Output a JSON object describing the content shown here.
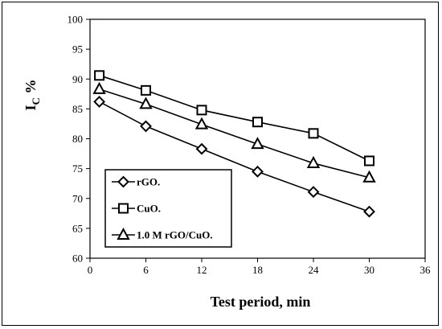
{
  "chart_data": {
    "type": "line",
    "title": "",
    "xlabel": "Test period, min",
    "ylabel_main": "I",
    "ylabel_sub": "C",
    "ylabel_suffix": " %",
    "xlim": [
      0,
      36
    ],
    "ylim": [
      60,
      100
    ],
    "xticks": [
      0,
      6,
      12,
      18,
      24,
      30,
      36
    ],
    "yticks": [
      60,
      65,
      70,
      75,
      80,
      85,
      90,
      95,
      100
    ],
    "grid": false,
    "legend_position": "bottom-left",
    "series": [
      {
        "name": "rGO.",
        "marker": "diamond",
        "x": [
          1,
          6,
          12,
          18,
          24,
          30
        ],
        "y": [
          86.2,
          82.1,
          78.3,
          74.5,
          71.1,
          67.8
        ]
      },
      {
        "name": "CuO.",
        "marker": "square",
        "x": [
          1,
          6,
          12,
          18,
          24,
          30
        ],
        "y": [
          90.6,
          88.1,
          84.8,
          82.8,
          80.9,
          76.3
        ]
      },
      {
        "name": "1.0 M rGO/CuO.",
        "marker": "triangle",
        "x": [
          1,
          6,
          12,
          18,
          24,
          30
        ],
        "y": [
          88.3,
          85.8,
          82.4,
          79.1,
          75.9,
          73.5
        ]
      }
    ]
  }
}
